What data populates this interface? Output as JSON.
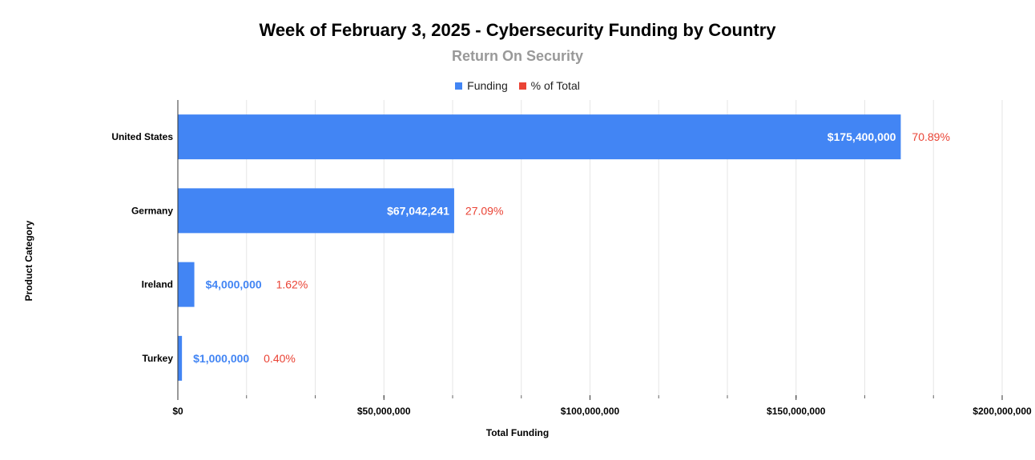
{
  "chart_data": {
    "type": "bar",
    "orientation": "horizontal",
    "title": "Week of February 3, 2025 - Cybersecurity Funding by Country",
    "subtitle": "Return On Security",
    "xlabel": "Total Funding",
    "ylabel": "Product Category",
    "categories": [
      "United States",
      "Germany",
      "Ireland",
      "Turkey"
    ],
    "series": [
      {
        "name": "Funding",
        "color": "#4285f4",
        "values": [
          175400000,
          67042241,
          4000000,
          1000000
        ],
        "labels": [
          "$175,400,000",
          "$67,042,241",
          "$4,000,000",
          "$1,000,000"
        ]
      },
      {
        "name": "% of Total",
        "color": "#ea4335",
        "labels": [
          "70.89%",
          "27.09%",
          "1.62%",
          "0.40%"
        ]
      }
    ],
    "xlim": [
      0,
      200000000
    ],
    "xticks": [
      0,
      50000000,
      100000000,
      150000000,
      200000000
    ],
    "xtick_labels": [
      "$0",
      "$50,000,000",
      "$100,000,000",
      "$150,000,000",
      "$200,000,000"
    ],
    "grid": true,
    "legend": "top-center"
  }
}
